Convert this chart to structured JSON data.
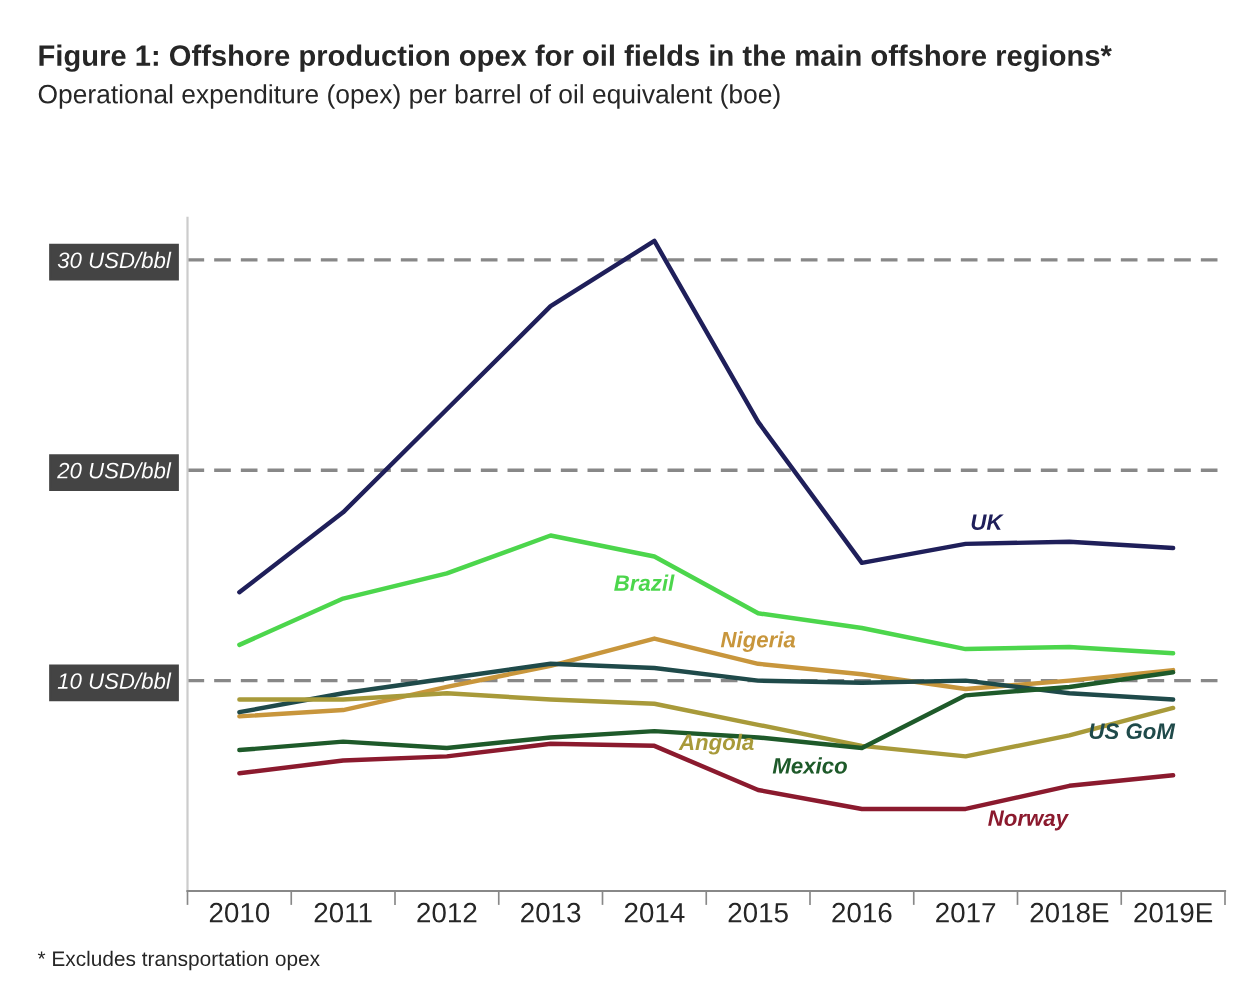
{
  "chart_data": {
    "type": "line",
    "title": "Figure 1: Offshore production opex for oil fields in the main offshore regions*",
    "subtitle": "Operational expenditure (opex) per barrel of oil equivalent (boe)",
    "categories": [
      "2010",
      "2011",
      "2012",
      "2013",
      "2014",
      "2015",
      "2016",
      "2017",
      "2018E",
      "2019E"
    ],
    "series": [
      {
        "name": "UK",
        "color": "#1f1f5a",
        "values": [
          14.2,
          18.0,
          22.9,
          27.8,
          30.9,
          22.3,
          15.6,
          16.5,
          16.6,
          16.3
        ]
      },
      {
        "name": "Brazil",
        "color": "#4cd64c",
        "values": [
          11.7,
          13.9,
          15.1,
          16.9,
          15.9,
          13.2,
          12.5,
          11.5,
          11.6,
          11.3
        ]
      },
      {
        "name": "Nigeria",
        "color": "#c8963c",
        "values": [
          8.3,
          8.6,
          9.7,
          10.7,
          12.0,
          10.8,
          10.3,
          9.6,
          10.0,
          10.5
        ]
      },
      {
        "name": "US GoM",
        "color": "#1f4a4a",
        "values": [
          8.5,
          9.4,
          10.1,
          10.8,
          10.6,
          10.0,
          9.9,
          10.0,
          9.4,
          9.1
        ]
      },
      {
        "name": "Angola",
        "color": "#a89a3a",
        "values": [
          9.1,
          9.1,
          9.4,
          9.1,
          8.9,
          7.9,
          6.9,
          6.4,
          7.4,
          8.7
        ]
      },
      {
        "name": "Mexico",
        "color": "#1e5a2a",
        "values": [
          6.7,
          7.1,
          6.8,
          7.3,
          7.6,
          7.3,
          6.8,
          9.3,
          9.7,
          10.4
        ]
      },
      {
        "name": "Norway",
        "color": "#8b1a2e",
        "values": [
          5.6,
          6.2,
          6.4,
          7.0,
          6.9,
          4.8,
          3.9,
          3.9,
          5.0,
          5.5
        ]
      }
    ],
    "ylim": [
      0,
      32
    ],
    "yticks": [
      {
        "value": 10,
        "label": "10 USD/bbl"
      },
      {
        "value": 20,
        "label": "20 USD/bbl"
      },
      {
        "value": 30,
        "label": "30 USD/bbl"
      }
    ],
    "annotations": [
      "* Excludes transportation opex"
    ],
    "legend": false,
    "grid": "y",
    "marker": "none",
    "line_style": "solid"
  }
}
